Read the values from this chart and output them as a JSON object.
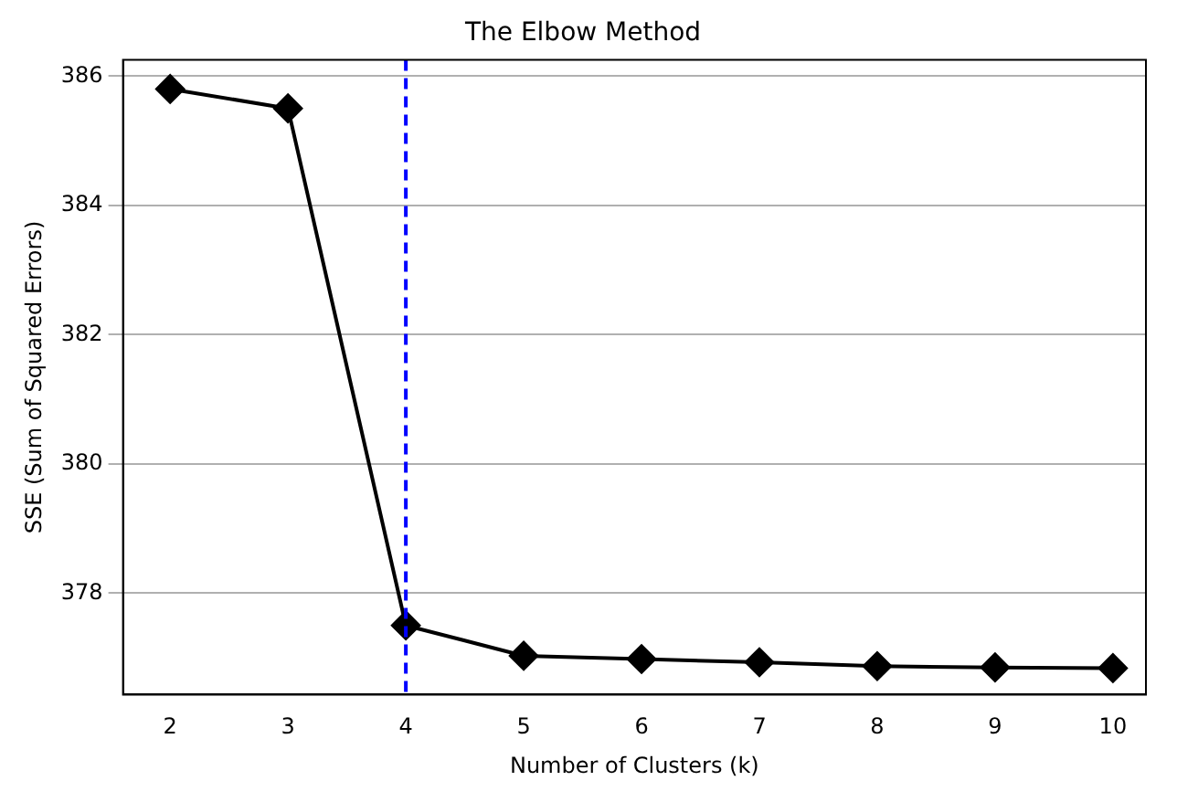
{
  "chart_data": {
    "type": "line",
    "title": "The Elbow Method",
    "xlabel": "Number of Clusters (k)",
    "ylabel": "SSE (Sum of Squared Errors)",
    "x": [
      2,
      3,
      4,
      5,
      6,
      7,
      8,
      9,
      10
    ],
    "series": [
      {
        "color": "#000000",
        "values": [
          385.8,
          385.5,
          377.5,
          377.03,
          376.98,
          376.93,
          376.87,
          376.85,
          376.84
        ]
      }
    ],
    "xlim": [
      1.6,
      10.28
    ],
    "xticks": [
      2,
      3,
      4,
      5,
      6,
      7,
      8,
      9,
      10
    ],
    "ylim": [
      376.43,
      386.25
    ],
    "yticks": [
      378,
      380,
      382,
      384,
      386
    ],
    "grid": "y",
    "legend": false,
    "marker": "diamond",
    "line_style": "solid",
    "ref_lines": [
      {
        "axis": "x",
        "value": 4,
        "color": "#0000ff",
        "line_style": "dashed"
      }
    ]
  }
}
